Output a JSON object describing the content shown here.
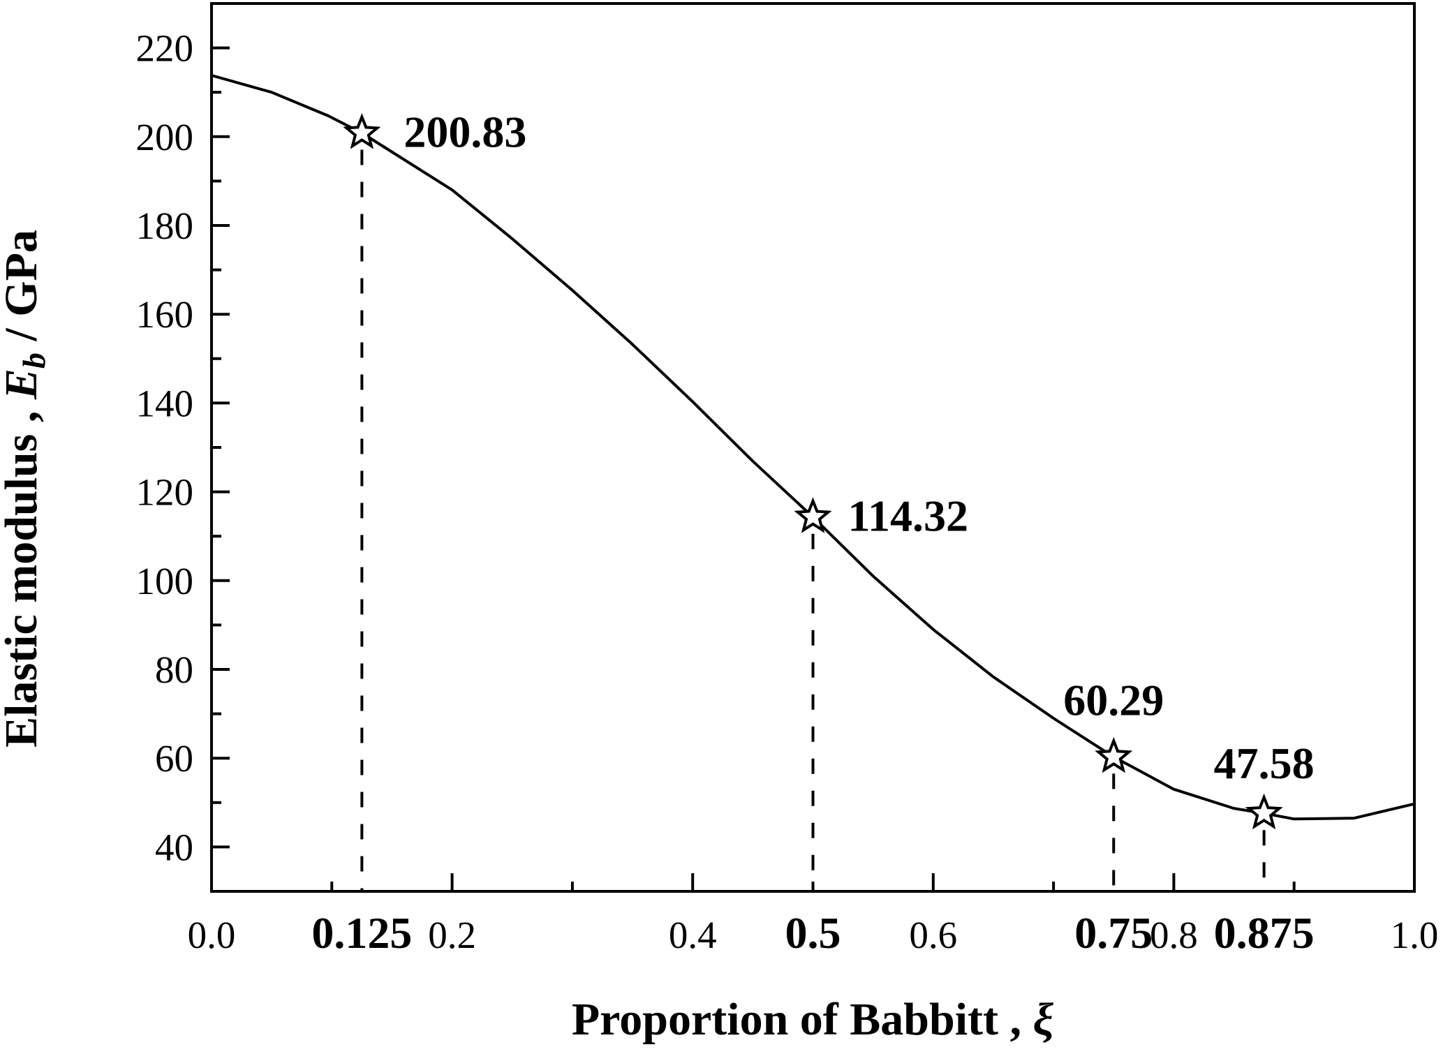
{
  "chart_data": {
    "type": "line",
    "title": "",
    "xlabel": "Proportion of Babbitt , ",
    "xlabel_symbol": "ξ",
    "ylabel": "Elastic modulus , ",
    "ylabel_symbol": "E",
    "ylabel_subscript": "b",
    "ylabel_unit": " / GPa",
    "xlim": [
      0,
      1.0
    ],
    "ylim": [
      30,
      230
    ],
    "grid": false,
    "x_ticks": [
      {
        "value": 0.0,
        "label": "0.0",
        "bold": false
      },
      {
        "value": 0.125,
        "label": "0.125",
        "bold": true
      },
      {
        "value": 0.2,
        "label": "0.2",
        "bold": false
      },
      {
        "value": 0.4,
        "label": "0.4",
        "bold": false
      },
      {
        "value": 0.5,
        "label": "0.5",
        "bold": true
      },
      {
        "value": 0.6,
        "label": "0.6",
        "bold": false
      },
      {
        "value": 0.75,
        "label": "0.75",
        "bold": true
      },
      {
        "value": 0.8,
        "label": "0.8",
        "bold": false
      },
      {
        "value": 0.875,
        "label": "0.875",
        "bold": true
      },
      {
        "value": 1.0,
        "label": "1.0",
        "bold": false
      }
    ],
    "y_ticks": [
      "40",
      "60",
      "80",
      "100",
      "120",
      "140",
      "160",
      "180",
      "200",
      "220"
    ],
    "series": [
      {
        "name": "Elastic modulus",
        "x": [
          0,
          0.05,
          0.097,
          0.125,
          0.2,
          0.25,
          0.3,
          0.35,
          0.4,
          0.45,
          0.5,
          0.55,
          0.6,
          0.65,
          0.7,
          0.75,
          0.8,
          0.85,
          0.875,
          0.9,
          0.95,
          1.0
        ],
        "y": [
          213.8,
          210,
          204.7,
          200.83,
          188,
          177,
          165.4,
          153.2,
          140.3,
          126.9,
          114.32,
          101,
          89,
          78.3,
          69,
          60.29,
          53,
          48.7,
          47.58,
          46.3,
          46.5,
          49.7
        ]
      }
    ],
    "highlighted_points": [
      {
        "x": 0.125,
        "y": 200.83,
        "label": "200.83"
      },
      {
        "x": 0.5,
        "y": 114.32,
        "label": "114.32"
      },
      {
        "x": 0.75,
        "y": 60.29,
        "label": "60.29"
      },
      {
        "x": 0.875,
        "y": 47.58,
        "label": "47.58"
      }
    ]
  }
}
